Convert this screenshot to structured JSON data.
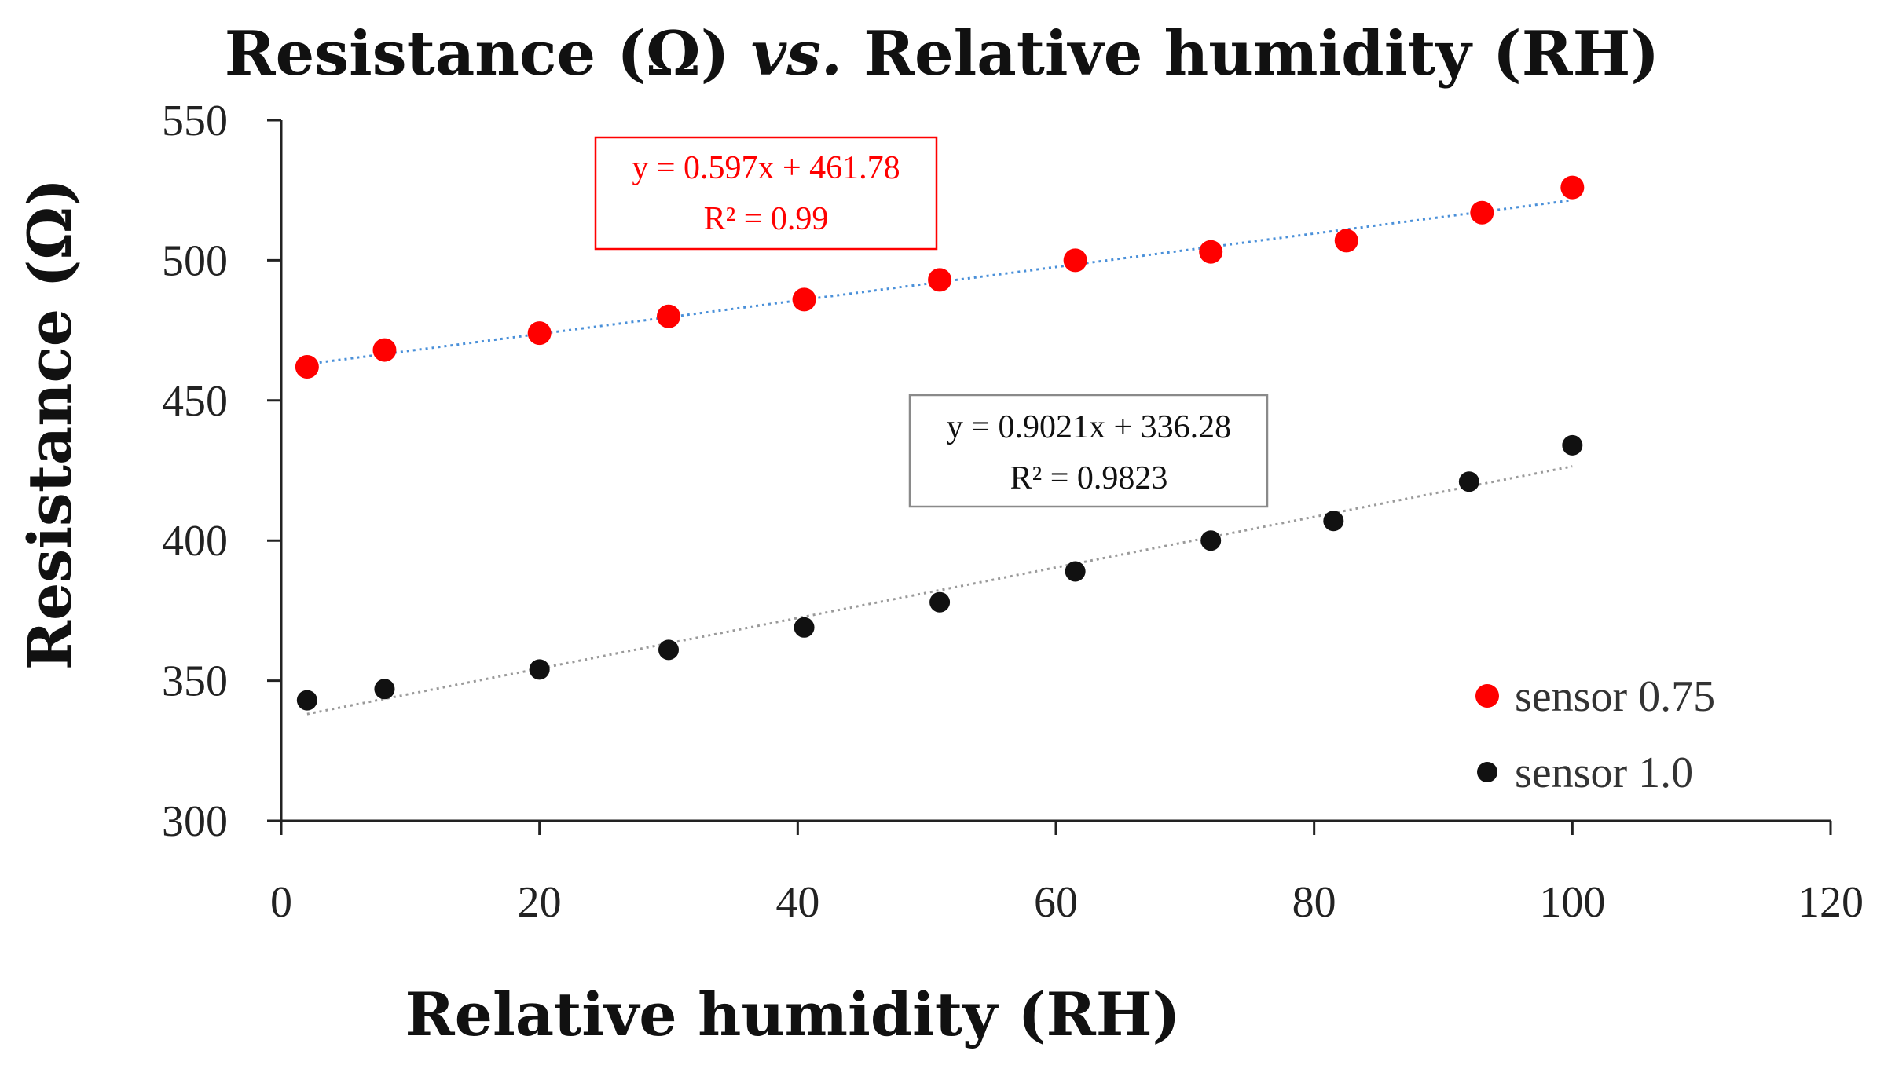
{
  "chart_data": {
    "type": "scatter",
    "title": {
      "part1": "Resistance (Ω) ",
      "italic": "vs.",
      "part2": " Relative humidity (RH)"
    },
    "xlabel": "Relative humidity (RH)",
    "ylabel": "Resistance (Ω)",
    "xlim": [
      0,
      120
    ],
    "ylim": [
      300,
      550
    ],
    "xticks": [
      "0",
      "20",
      "40",
      "60",
      "80",
      "100",
      "120"
    ],
    "yticks": [
      "300",
      "350",
      "400",
      "450",
      "500",
      "550"
    ],
    "grid": false,
    "legend_position": "bottom-right",
    "series": [
      {
        "name": "sensor 0.75",
        "color": "#ff0000",
        "trendline_color": "#4a90d9",
        "x": [
          2,
          8,
          20,
          30,
          40.5,
          51,
          61.5,
          72,
          82.5,
          93,
          100
        ],
        "y": [
          462,
          468,
          474,
          480,
          486,
          493,
          500,
          503,
          507,
          517,
          526
        ],
        "trendline": {
          "slope": 0.597,
          "intercept": 461.78
        },
        "equation": "y = 0.597x + 461.78",
        "r2": "R² = 0.99"
      },
      {
        "name": "sensor 1.0",
        "color": "#111111",
        "trendline_color": "#9a9a9a",
        "x": [
          2,
          8,
          20,
          30,
          40.5,
          51,
          61.5,
          72,
          81.5,
          92,
          100
        ],
        "y": [
          343,
          347,
          354,
          361,
          369,
          378,
          389,
          400,
          407,
          421,
          434
        ],
        "trendline": {
          "slope": 0.9021,
          "intercept": 336.28
        },
        "equation": "y = 0.9021x + 336.28",
        "r2": "R² = 0.9823"
      }
    ]
  }
}
